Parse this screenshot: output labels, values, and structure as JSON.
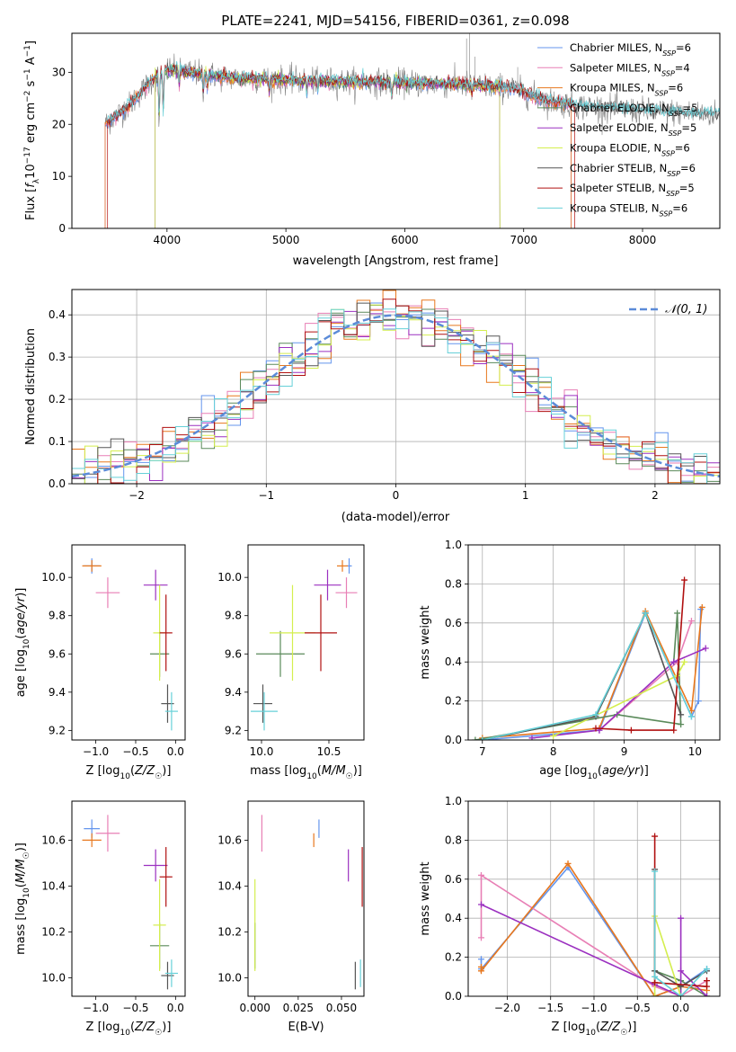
{
  "figure": {
    "title": "PLATE=2241, MJD=54156, FIBERID=0361, z=0.098"
  },
  "series_styles": [
    {
      "model": "Chabrier MILES",
      "color": "#6495ed"
    },
    {
      "model": "Salpeter MILES",
      "color": "#e87fb5"
    },
    {
      "model": "Kroupa MILES",
      "color": "#e8781e"
    },
    {
      "model": "Chabrier ELODIE",
      "color": "#5a8a5a"
    },
    {
      "model": "Salpeter ELODIE",
      "color": "#9b30c0"
    },
    {
      "model": "Kroupa ELODIE",
      "color": "#d4ee4e"
    },
    {
      "model": "Chabrier STELIB",
      "color": "#555555"
    },
    {
      "model": "Salpeter STELIB",
      "color": "#b01010"
    },
    {
      "model": "Kroupa STELIB",
      "color": "#66d0d8"
    }
  ],
  "chart_data": [
    {
      "id": "spectrum",
      "type": "line",
      "title": "PLATE=2241, MJD=54156, FIBERID=0361, z=0.098",
      "xlabel": "wavelength [Angstrom, rest frame]",
      "ylabel": "Flux [fλ10⁻¹⁷ erg cm⁻² s⁻¹ A⁻¹]",
      "xlim": [
        3200,
        8650
      ],
      "ylim": [
        0,
        37.5
      ],
      "xticks": [
        "4000",
        "5000",
        "6000",
        "7000",
        "8000"
      ],
      "yticks": [
        "0",
        "10",
        "20",
        "30"
      ],
      "legend_position": "upper right",
      "legend": [
        {
          "label": "Chabrier MILES, N",
          "sub": "SSP",
          "suffix": "=6"
        },
        {
          "label": "Salpeter MILES, N",
          "sub": "SSP",
          "suffix": "=4"
        },
        {
          "label": "Kroupa MILES, N",
          "sub": "SSP",
          "suffix": "=6"
        },
        {
          "label": "Chabrier ELODIE, N",
          "sub": "SSP",
          "suffix": "=5"
        },
        {
          "label": "Salpeter ELODIE, N",
          "sub": "SSP",
          "suffix": "=5"
        },
        {
          "label": "Kroupa ELODIE, N",
          "sub": "SSP",
          "suffix": "=6"
        },
        {
          "label": "Chabrier STELIB, N",
          "sub": "SSP",
          "suffix": "=6"
        },
        {
          "label": "Salpeter STELIB, N",
          "sub": "SSP",
          "suffix": "=5"
        },
        {
          "label": "Kroupa STELIB, N",
          "sub": "SSP",
          "suffix": "=6"
        }
      ],
      "data_series": {
        "name": "data",
        "color": "#808080",
        "x_range": [
          3480,
          8650
        ]
      },
      "continuum": {
        "x": [
          3480,
          3700,
          3850,
          4000,
          4200,
          4500,
          5000,
          5500,
          6000,
          6500,
          6900,
          7200,
          7500,
          8000,
          8600
        ],
        "y": [
          20,
          24,
          28,
          30.5,
          30,
          29,
          28.5,
          28.2,
          28,
          27.6,
          27,
          24.5,
          23.5,
          22.5,
          22
        ]
      },
      "model_x_ranges": [
        [
          3480,
          7400
        ],
        [
          3480,
          7400
        ],
        [
          3480,
          7400
        ],
        [
          3900,
          6800
        ],
        [
          3900,
          6800
        ],
        [
          3900,
          6800
        ],
        [
          3500,
          8650
        ],
        [
          3500,
          7430
        ],
        [
          3500,
          8650
        ]
      ],
      "absorption_lines": [
        {
          "x": 3934,
          "depth": 10
        },
        {
          "x": 3969,
          "depth": 9
        },
        {
          "x": 4102,
          "depth": 3
        },
        {
          "x": 4305,
          "depth": 4
        },
        {
          "x": 4341,
          "depth": 3
        },
        {
          "x": 4861,
          "depth": 3
        },
        {
          "x": 5175,
          "depth": 3
        },
        {
          "x": 5270,
          "depth": 2
        },
        {
          "x": 5890,
          "depth": 3
        },
        {
          "x": 6563,
          "depth": 2
        }
      ]
    },
    {
      "id": "residual_hist",
      "type": "step",
      "xlabel": "(data-model)/error",
      "ylabel": "Normed distribution",
      "xlim": [
        -2.5,
        2.5
      ],
      "ylim": [
        0,
        0.46
      ],
      "xticks": [
        "−2",
        "−1",
        "0",
        "1",
        "2"
      ],
      "yticks": [
        "0.0",
        "0.1",
        "0.2",
        "0.3",
        "0.4"
      ],
      "grid": true,
      "reference": {
        "name": "N(0,1)",
        "legend": "𝒩(0, 1)",
        "mu": 0,
        "sigma": 1,
        "style": "dashed"
      },
      "bin_width": 0.1
    },
    {
      "id": "age_vs_Z",
      "type": "errorbar",
      "xlabel": "Z [log10(Z/Z☉)]",
      "ylabel": "age [log10(age/yr)]",
      "xlim": [
        -1.3,
        0.12
      ],
      "ylim": [
        9.15,
        10.17
      ],
      "xticks": [
        -1.0,
        -0.5,
        0.0
      ],
      "yticks": [
        9.2,
        9.4,
        9.6,
        9.8,
        10.0
      ],
      "x_center": [
        -1.05,
        -0.85,
        -1.05,
        -0.2,
        -0.25,
        -0.2,
        -0.1,
        -0.12,
        -0.05
      ],
      "x_err": [
        0.1,
        0.15,
        0.12,
        0.12,
        0.15,
        0.08,
        0.08,
        0.08,
        0.08
      ],
      "y_center": [
        10.06,
        9.92,
        10.06,
        9.6,
        9.96,
        9.71,
        9.34,
        9.71,
        9.3
      ],
      "y_err": [
        0.04,
        0.08,
        0.03,
        0.12,
        0.08,
        0.25,
        0.1,
        0.2,
        0.1
      ]
    },
    {
      "id": "age_vs_mass",
      "type": "errorbar",
      "xlabel": "mass [log10(M/M☉)]",
      "xlim": [
        9.9,
        10.76
      ],
      "ylim": [
        9.15,
        10.17
      ],
      "xticks": [
        10.0,
        10.5
      ],
      "yticks": [
        9.2,
        9.4,
        9.6,
        9.8,
        10.0
      ],
      "x_center": [
        10.65,
        10.63,
        10.6,
        10.14,
        10.49,
        10.23,
        10.01,
        10.44,
        10.02
      ],
      "x_err": [
        0.02,
        0.08,
        0.04,
        0.18,
        0.1,
        0.17,
        0.07,
        0.12,
        0.1
      ],
      "y_center": [
        10.06,
        9.92,
        10.06,
        9.6,
        9.96,
        9.71,
        9.34,
        9.71,
        9.3
      ],
      "y_err": [
        0.04,
        0.08,
        0.03,
        0.12,
        0.08,
        0.25,
        0.1,
        0.2,
        0.1
      ]
    },
    {
      "id": "massweight_vs_age",
      "type": "line",
      "xlabel": "age [log10(age/yr)]",
      "ylabel": "mass weight",
      "xlim": [
        6.8,
        10.35
      ],
      "ylim": [
        0,
        1
      ],
      "xticks": [
        7,
        8,
        9,
        10
      ],
      "yticks": [
        0.0,
        0.2,
        0.4,
        0.6,
        0.8,
        1.0
      ],
      "grid": true,
      "series": [
        {
          "x": [
            7.0,
            8.65,
            9.3,
            9.95,
            10.05,
            10.08
          ],
          "y": [
            0.0,
            0.05,
            0.65,
            0.12,
            0.2,
            0.67
          ]
        },
        {
          "x": [
            8.65,
            9.75,
            9.95
          ],
          "y": [
            0.05,
            0.4,
            0.61
          ]
        },
        {
          "x": [
            7.0,
            8.65,
            9.3,
            9.95,
            10.1
          ],
          "y": [
            0.01,
            0.06,
            0.66,
            0.15,
            0.68
          ]
        },
        {
          "x": [
            6.9,
            8.9,
            9.8,
            9.75,
            9.7
          ],
          "y": [
            0.0,
            0.13,
            0.08,
            0.65,
            0.4
          ]
        },
        {
          "x": [
            7.7,
            8.65,
            9.7,
            10.15
          ],
          "y": [
            0.01,
            0.05,
            0.4,
            0.47
          ]
        },
        {
          "x": [
            8.0,
            9.75,
            9.85
          ],
          "y": [
            0.02,
            0.33,
            0.4
          ]
        },
        {
          "x": [
            7.0,
            8.6,
            9.3,
            9.8
          ],
          "y": [
            0.0,
            0.12,
            0.65,
            0.13
          ]
        },
        {
          "x": [
            8.6,
            9.1,
            9.7,
            9.85
          ],
          "y": [
            0.06,
            0.05,
            0.05,
            0.82
          ]
        },
        {
          "x": [
            7.0,
            8.6,
            9.3,
            9.95
          ],
          "y": [
            0.0,
            0.13,
            0.65,
            0.12
          ]
        }
      ]
    },
    {
      "id": "mass_vs_Z",
      "type": "errorbar",
      "xlabel": "Z [log10(Z/Z☉)]",
      "ylabel": "mass [log10(M/M☉)]",
      "xlim": [
        -1.3,
        0.12
      ],
      "ylim": [
        9.92,
        10.77
      ],
      "xticks": [
        -1.0,
        -0.5,
        0.0
      ],
      "yticks": [
        10.0,
        10.2,
        10.4,
        10.6
      ],
      "x_center": [
        -1.05,
        -0.85,
        -1.05,
        -0.2,
        -0.25,
        -0.2,
        -0.1,
        -0.12,
        -0.05
      ],
      "x_err": [
        0.1,
        0.15,
        0.12,
        0.12,
        0.15,
        0.08,
        0.08,
        0.08,
        0.08
      ],
      "y_center": [
        10.65,
        10.63,
        10.6,
        10.14,
        10.49,
        10.23,
        10.01,
        10.44,
        10.02
      ],
      "y_err": [
        0.04,
        0.08,
        0.03,
        0.1,
        0.07,
        0.2,
        0.06,
        0.13,
        0.06
      ]
    },
    {
      "id": "mass_vs_ebv",
      "type": "errorbar",
      "xlabel": "E(B-V)",
      "xlim": [
        -0.004,
        0.063
      ],
      "ylim": [
        9.92,
        10.77
      ],
      "xticks": [
        0.0,
        0.025,
        0.05
      ],
      "yticks": [
        10.0,
        10.2,
        10.4,
        10.6
      ],
      "x_center": [
        0.037,
        0.004,
        0.034,
        0.0,
        0.054,
        0.0,
        0.058,
        0.062,
        0.061
      ],
      "x_err": [
        0,
        0,
        0,
        0,
        0,
        0,
        0,
        0,
        0
      ],
      "y_center": [
        10.65,
        10.63,
        10.6,
        10.14,
        10.49,
        10.23,
        10.01,
        10.44,
        10.02
      ],
      "y_err": [
        0.04,
        0.08,
        0.03,
        0.1,
        0.07,
        0.2,
        0.06,
        0.13,
        0.06
      ]
    },
    {
      "id": "massweight_vs_Z",
      "type": "line",
      "xlabel": "Z [log10(Z/Z☉)]",
      "ylabel": "mass weight",
      "xlim": [
        -2.45,
        0.45
      ],
      "ylim": [
        0,
        1
      ],
      "xticks": [
        -2.0,
        -1.5,
        -1.0,
        -0.5,
        0.0
      ],
      "yticks": [
        0.0,
        0.2,
        0.4,
        0.6,
        0.8,
        1.0
      ],
      "grid": true,
      "series": [
        {
          "x": [
            -2.3,
            -2.3,
            -1.3,
            -0.3,
            0.0,
            0.3
          ],
          "y": [
            0.19,
            0.14,
            0.66,
            0.0,
            0.05,
            0.14
          ]
        },
        {
          "x": [
            -2.3,
            -2.3,
            -0.3,
            0.0,
            0.3
          ],
          "y": [
            0.3,
            0.62,
            0.05,
            0.0,
            0.08
          ]
        },
        {
          "x": [
            -2.3,
            -2.3,
            -1.3,
            -0.3,
            0.0,
            0.3
          ],
          "y": [
            0.15,
            0.13,
            0.68,
            0.0,
            0.05,
            0.03
          ]
        },
        {
          "x": [
            -0.3,
            0.0,
            0.3
          ],
          "y": [
            0.13,
            0.08,
            0.0
          ]
        },
        {
          "x": [
            -2.3,
            -0.3,
            0.0,
            0.0,
            0.0,
            0.3
          ],
          "y": [
            0.47,
            0.06,
            0.0,
            0.4,
            0.13,
            0.0
          ]
        },
        {
          "x": [
            -0.3,
            -0.3,
            0.0
          ],
          "y": [
            0.0,
            0.41,
            0.0
          ]
        },
        {
          "x": [
            -0.3,
            -0.3,
            0.0,
            0.3
          ],
          "y": [
            0.65,
            0.13,
            0.05,
            0.13
          ]
        },
        {
          "x": [
            -0.3,
            -0.3,
            0.3,
            0.3
          ],
          "y": [
            0.82,
            0.07,
            0.05,
            0.08
          ]
        },
        {
          "x": [
            -0.3,
            -0.3,
            0.0,
            0.3
          ],
          "y": [
            0.64,
            0.1,
            0.0,
            0.14
          ]
        }
      ]
    }
  ]
}
